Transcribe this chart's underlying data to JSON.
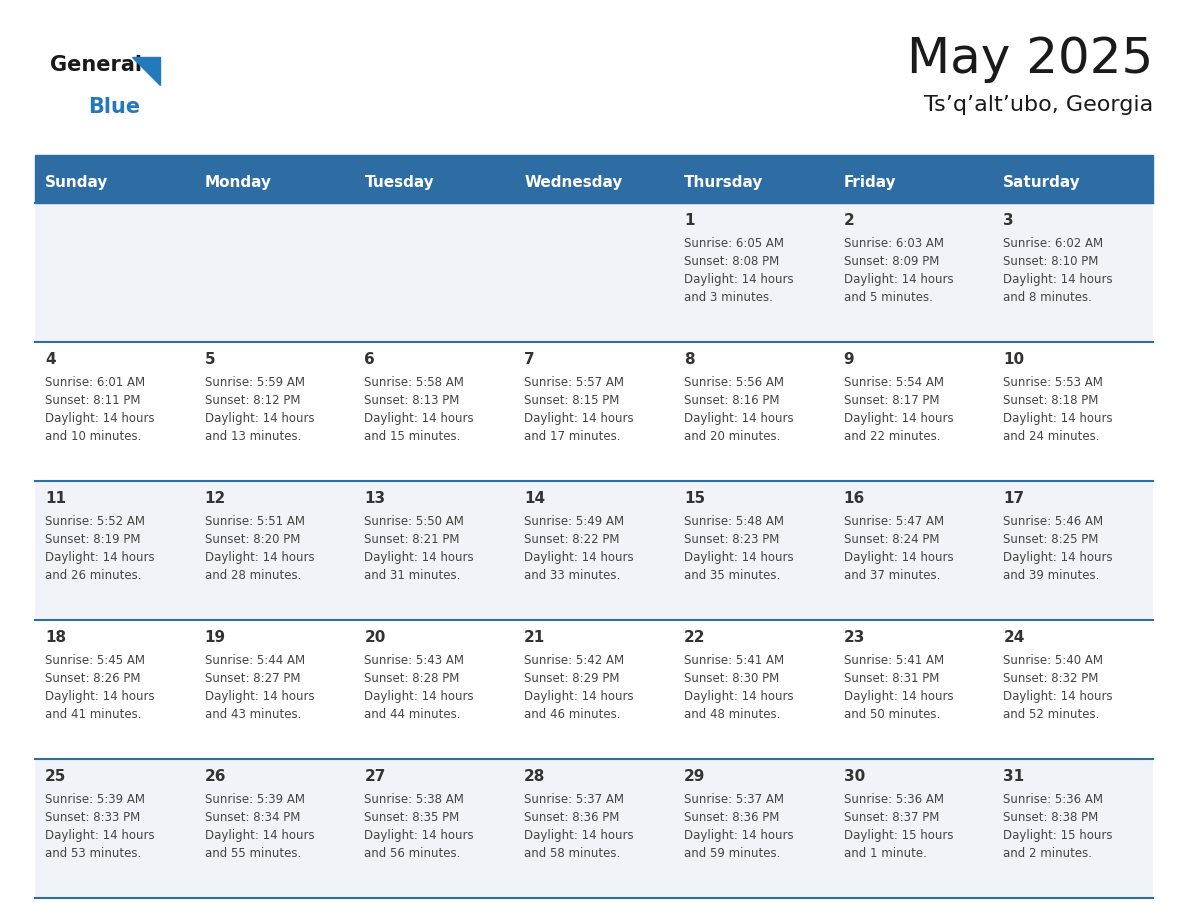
{
  "title": "May 2025",
  "subtitle": "Ts’q’alt’ubo, Georgia",
  "days_of_week": [
    "Sunday",
    "Monday",
    "Tuesday",
    "Wednesday",
    "Thursday",
    "Friday",
    "Saturday"
  ],
  "header_bg": "#2E6DA4",
  "header_text": "#FFFFFF",
  "row_bg_light": "#F0F4F8",
  "row_bg_white": "#FFFFFF",
  "border_color": "#2E6DA4",
  "text_color": "#444444",
  "day_num_color": "#333333",
  "calendar_data": [
    [
      null,
      null,
      null,
      null,
      {
        "day": 1,
        "sunrise": "6:05 AM",
        "sunset": "8:08 PM",
        "daylight": "14 hours and 3 minutes."
      },
      {
        "day": 2,
        "sunrise": "6:03 AM",
        "sunset": "8:09 PM",
        "daylight": "14 hours and 5 minutes."
      },
      {
        "day": 3,
        "sunrise": "6:02 AM",
        "sunset": "8:10 PM",
        "daylight": "14 hours and 8 minutes."
      }
    ],
    [
      {
        "day": 4,
        "sunrise": "6:01 AM",
        "sunset": "8:11 PM",
        "daylight": "14 hours and 10 minutes."
      },
      {
        "day": 5,
        "sunrise": "5:59 AM",
        "sunset": "8:12 PM",
        "daylight": "14 hours and 13 minutes."
      },
      {
        "day": 6,
        "sunrise": "5:58 AM",
        "sunset": "8:13 PM",
        "daylight": "14 hours and 15 minutes."
      },
      {
        "day": 7,
        "sunrise": "5:57 AM",
        "sunset": "8:15 PM",
        "daylight": "14 hours and 17 minutes."
      },
      {
        "day": 8,
        "sunrise": "5:56 AM",
        "sunset": "8:16 PM",
        "daylight": "14 hours and 20 minutes."
      },
      {
        "day": 9,
        "sunrise": "5:54 AM",
        "sunset": "8:17 PM",
        "daylight": "14 hours and 22 minutes."
      },
      {
        "day": 10,
        "sunrise": "5:53 AM",
        "sunset": "8:18 PM",
        "daylight": "14 hours and 24 minutes."
      }
    ],
    [
      {
        "day": 11,
        "sunrise": "5:52 AM",
        "sunset": "8:19 PM",
        "daylight": "14 hours and 26 minutes."
      },
      {
        "day": 12,
        "sunrise": "5:51 AM",
        "sunset": "8:20 PM",
        "daylight": "14 hours and 28 minutes."
      },
      {
        "day": 13,
        "sunrise": "5:50 AM",
        "sunset": "8:21 PM",
        "daylight": "14 hours and 31 minutes."
      },
      {
        "day": 14,
        "sunrise": "5:49 AM",
        "sunset": "8:22 PM",
        "daylight": "14 hours and 33 minutes."
      },
      {
        "day": 15,
        "sunrise": "5:48 AM",
        "sunset": "8:23 PM",
        "daylight": "14 hours and 35 minutes."
      },
      {
        "day": 16,
        "sunrise": "5:47 AM",
        "sunset": "8:24 PM",
        "daylight": "14 hours and 37 minutes."
      },
      {
        "day": 17,
        "sunrise": "5:46 AM",
        "sunset": "8:25 PM",
        "daylight": "14 hours and 39 minutes."
      }
    ],
    [
      {
        "day": 18,
        "sunrise": "5:45 AM",
        "sunset": "8:26 PM",
        "daylight": "14 hours and 41 minutes."
      },
      {
        "day": 19,
        "sunrise": "5:44 AM",
        "sunset": "8:27 PM",
        "daylight": "14 hours and 43 minutes."
      },
      {
        "day": 20,
        "sunrise": "5:43 AM",
        "sunset": "8:28 PM",
        "daylight": "14 hours and 44 minutes."
      },
      {
        "day": 21,
        "sunrise": "5:42 AM",
        "sunset": "8:29 PM",
        "daylight": "14 hours and 46 minutes."
      },
      {
        "day": 22,
        "sunrise": "5:41 AM",
        "sunset": "8:30 PM",
        "daylight": "14 hours and 48 minutes."
      },
      {
        "day": 23,
        "sunrise": "5:41 AM",
        "sunset": "8:31 PM",
        "daylight": "14 hours and 50 minutes."
      },
      {
        "day": 24,
        "sunrise": "5:40 AM",
        "sunset": "8:32 PM",
        "daylight": "14 hours and 52 minutes."
      }
    ],
    [
      {
        "day": 25,
        "sunrise": "5:39 AM",
        "sunset": "8:33 PM",
        "daylight": "14 hours and 53 minutes."
      },
      {
        "day": 26,
        "sunrise": "5:39 AM",
        "sunset": "8:34 PM",
        "daylight": "14 hours and 55 minutes."
      },
      {
        "day": 27,
        "sunrise": "5:38 AM",
        "sunset": "8:35 PM",
        "daylight": "14 hours and 56 minutes."
      },
      {
        "day": 28,
        "sunrise": "5:37 AM",
        "sunset": "8:36 PM",
        "daylight": "14 hours and 58 minutes."
      },
      {
        "day": 29,
        "sunrise": "5:37 AM",
        "sunset": "8:36 PM",
        "daylight": "14 hours and 59 minutes."
      },
      {
        "day": 30,
        "sunrise": "5:36 AM",
        "sunset": "8:37 PM",
        "daylight": "15 hours and 1 minute."
      },
      {
        "day": 31,
        "sunrise": "5:36 AM",
        "sunset": "8:38 PM",
        "daylight": "15 hours and 2 minutes."
      }
    ]
  ],
  "logo_text1": "General",
  "logo_text2": "Blue",
  "logo_color1": "#1a1a1a",
  "logo_color2": "#2479BD",
  "logo_triangle_color": "#2479BD"
}
